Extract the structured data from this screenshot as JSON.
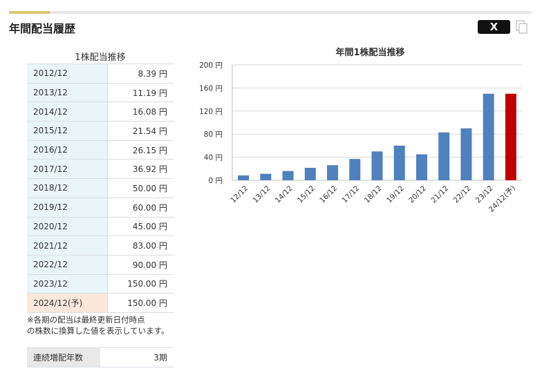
{
  "section": {
    "title": "年間配当履歴"
  },
  "share": {
    "x_label": "X",
    "icons": [
      "x-logo-icon",
      "copy-icon"
    ]
  },
  "table": {
    "caption": "1株配当推移",
    "rows": [
      {
        "year": "2012/12",
        "value": "8.39 円"
      },
      {
        "year": "2013/12",
        "value": "11.19 円"
      },
      {
        "year": "2014/12",
        "value": "16.08 円"
      },
      {
        "year": "2015/12",
        "value": "21.54 円"
      },
      {
        "year": "2016/12",
        "value": "26.15 円"
      },
      {
        "year": "2017/12",
        "value": "36.92 円"
      },
      {
        "year": "2018/12",
        "value": "50.00 円"
      },
      {
        "year": "2019/12",
        "value": "60.00 円"
      },
      {
        "year": "2020/12",
        "value": "45.00 円"
      },
      {
        "year": "2021/12",
        "value": "83.00 円"
      },
      {
        "year": "2022/12",
        "value": "90.00 円"
      },
      {
        "year": "2023/12",
        "value": "150.00 円"
      },
      {
        "year": "2024/12(予)",
        "value": "150.00 円",
        "forecast": true
      }
    ]
  },
  "note": {
    "line1": "※各期の配当は最終更新日付時点",
    "line2": "の株数に換算した値を表示しています。"
  },
  "streak": {
    "label": "連続増配年数",
    "value": "3期"
  },
  "chart_data": {
    "type": "bar",
    "title": "年間1株配当推移",
    "categories": [
      "12/12",
      "13/12",
      "14/12",
      "15/12",
      "16/12",
      "17/12",
      "18/12",
      "19/12",
      "20/12",
      "21/12",
      "22/12",
      "23/12",
      "24/12(予)"
    ],
    "values": [
      8.39,
      11.19,
      16.08,
      21.54,
      26.15,
      36.92,
      50.0,
      60.0,
      45.0,
      83.0,
      90.0,
      150.0,
      150.0
    ],
    "ylim": [
      0,
      200
    ],
    "yticks": [
      0,
      40,
      80,
      120,
      160,
      200
    ],
    "ytick_suffix": " 円",
    "grid": true,
    "bar_color": "#4f81bd",
    "forecast_color": "#c00000",
    "forecast_index": 12
  }
}
